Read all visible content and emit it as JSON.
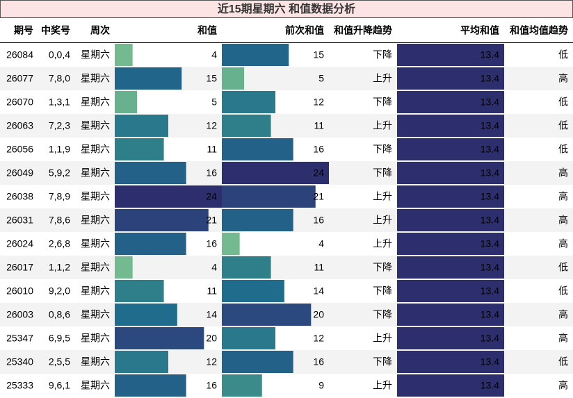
{
  "title": "近15期星期六 和值数据分析",
  "columns": [
    "期号",
    "中奖号",
    "周次",
    "和值",
    "前次和值",
    "和值升降趋势",
    "平均和值",
    "和值均值趋势"
  ],
  "bar_columns": [
    3,
    4,
    6
  ],
  "bar_gradient": [
    "#74ba90",
    "#3a8b8a",
    "#1f6c8c",
    "#2a5083",
    "#2d2e6e"
  ],
  "rows": [
    [
      "26084",
      "0,0,4",
      "星期六",
      4,
      15,
      "下降",
      13.4,
      "低"
    ],
    [
      "26077",
      "7,8,0",
      "星期六",
      15,
      5,
      "上升",
      13.4,
      "高"
    ],
    [
      "26070",
      "1,3,1",
      "星期六",
      5,
      12,
      "下降",
      13.4,
      "低"
    ],
    [
      "26063",
      "7,2,3",
      "星期六",
      12,
      11,
      "上升",
      13.4,
      "低"
    ],
    [
      "26056",
      "1,1,9",
      "星期六",
      11,
      16,
      "下降",
      13.4,
      "低"
    ],
    [
      "26049",
      "5,9,2",
      "星期六",
      16,
      24,
      "下降",
      13.4,
      "高"
    ],
    [
      "26038",
      "7,8,9",
      "星期六",
      24,
      21,
      "上升",
      13.4,
      "高"
    ],
    [
      "26031",
      "7,8,6",
      "星期六",
      21,
      16,
      "上升",
      13.4,
      "高"
    ],
    [
      "26024",
      "2,6,8",
      "星期六",
      16,
      4,
      "上升",
      13.4,
      "高"
    ],
    [
      "26017",
      "1,1,2",
      "星期六",
      4,
      11,
      "下降",
      13.4,
      "低"
    ],
    [
      "26010",
      "9,2,0",
      "星期六",
      11,
      14,
      "下降",
      13.4,
      "低"
    ],
    [
      "26003",
      "0,8,6",
      "星期六",
      14,
      20,
      "下降",
      13.4,
      "高"
    ],
    [
      "25347",
      "6,9,5",
      "星期六",
      20,
      12,
      "上升",
      13.4,
      "高"
    ],
    [
      "25340",
      "2,5,5",
      "星期六",
      12,
      16,
      "下降",
      13.4,
      "低"
    ],
    [
      "25333",
      "9,6,1",
      "星期六",
      16,
      9,
      "上升",
      13.4,
      "高"
    ]
  ]
}
